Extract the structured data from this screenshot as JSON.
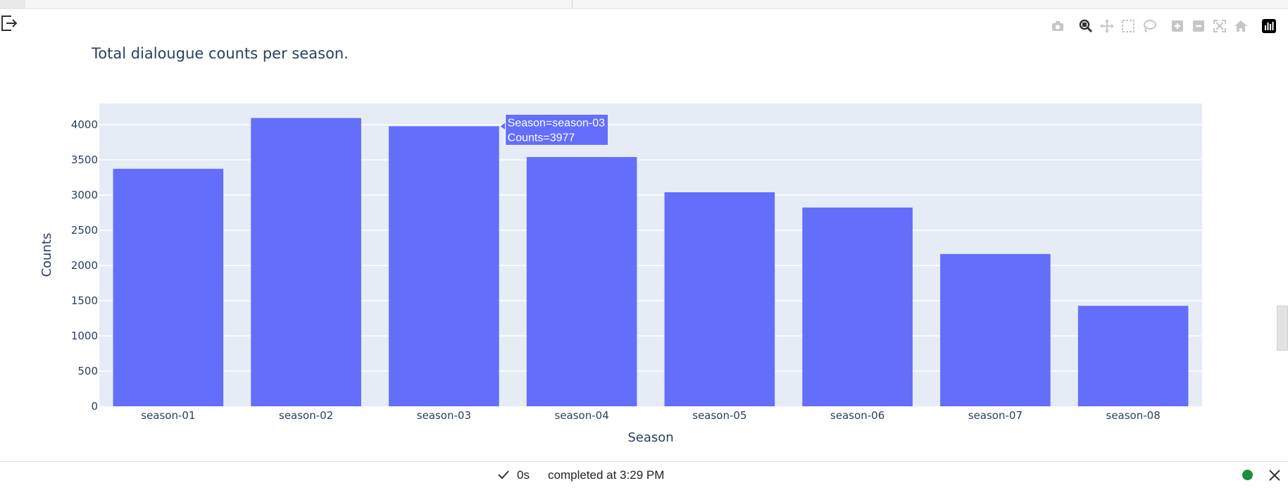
{
  "chart_data": {
    "type": "bar",
    "title": "Total dialougue counts per season.",
    "xlabel": "Season",
    "ylabel": "Counts",
    "categories": [
      "season-01",
      "season-02",
      "season-03",
      "season-04",
      "season-05",
      "season-06",
      "season-07",
      "season-08"
    ],
    "values": [
      3373,
      4094,
      3977,
      3540,
      3040,
      2823,
      2163,
      1427
    ],
    "ylim": [
      0,
      4300
    ],
    "yticks": [
      0,
      500,
      1000,
      1500,
      2000,
      2500,
      3000,
      3500,
      4000
    ],
    "grid": true,
    "bar_color": "#636efa",
    "plot_bg": "#e5ecf6",
    "hover": {
      "index": 2,
      "line1": "Season=season-03",
      "line2": "Counts=3977"
    }
  },
  "toolbar": {
    "icons": [
      "camera-icon",
      "zoom-icon",
      "pan-icon",
      "box-select-icon",
      "lasso-select-icon",
      "zoom-in-icon",
      "zoom-out-icon",
      "autoscale-icon",
      "reset-axes-icon",
      "plotly-logo-icon"
    ]
  },
  "footer": {
    "duration": "0s",
    "status": "completed at 3:29 PM",
    "status_color": "#1e8e3e"
  }
}
